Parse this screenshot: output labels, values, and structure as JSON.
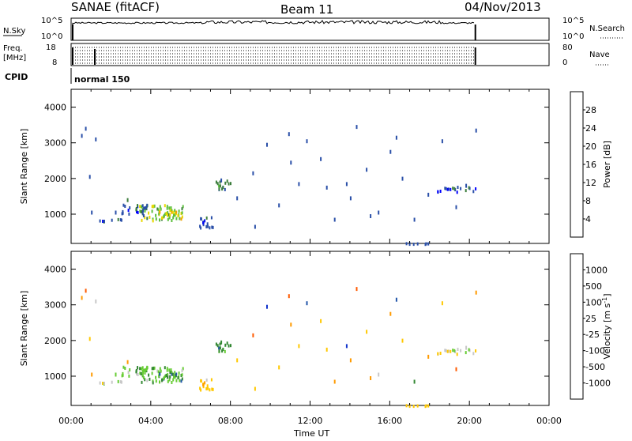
{
  "header": {
    "station": "SANAE (fitACF)",
    "beam": "Beam 11",
    "date": "04/Nov/2013"
  },
  "aux_panels": {
    "nsky_label": "N.Sky",
    "nsky_ticks": [
      "10^5",
      "10^0"
    ],
    "nsearch_label": "N.Search",
    "freq_label_line1": "Freq.",
    "freq_label_line2": "[MHz]",
    "freq_ticks": [
      "18",
      "8"
    ],
    "nave_ticks": [
      "80",
      "0"
    ],
    "nave_label": "Nave",
    "cpid_label": "CPID",
    "cpid_value": "normal 150"
  },
  "colors": {
    "power_scale": [
      "#0000ff",
      "#2a4fa8",
      "#3c7d3c",
      "#5bbf3c",
      "#e8d800",
      "#f0a000",
      "#f06000",
      "#ff0000"
    ],
    "velocity_scale": [
      "#ff0000",
      "#ff5a00",
      "#ff9a00",
      "#ffc800",
      "#c8c8c8",
      "#66cc33",
      "#338833",
      "#2255aa",
      "#1133cc"
    ]
  },
  "chart_data": [
    {
      "type": "heatmap",
      "name_id": "power",
      "xlabel": "",
      "ylabel": "Slant Range [km]",
      "xlim": [
        0,
        24
      ],
      "ylim": [
        180,
        4500
      ],
      "yticks": [
        1000,
        2000,
        3000,
        4000
      ],
      "colorbar_label": "Power [dB]",
      "colorbar_ticks": [
        "4",
        "8",
        "12",
        "16",
        "20",
        "24",
        "28"
      ],
      "clusters": [
        {
          "x": [
            3.4,
            5.6
          ],
          "y": [
            850,
            1300
          ],
          "level": 3
        },
        {
          "x": [
            4.4,
            5.5
          ],
          "y": [
            900,
            1100
          ],
          "level": 4
        },
        {
          "x": [
            2.5,
            3.8
          ],
          "y": [
            1000,
            1300
          ],
          "level": 1
        },
        {
          "x": [
            1.3,
            2.8
          ],
          "y": [
            820,
            900
          ],
          "level": 1
        },
        {
          "x": [
            6.3,
            7.2
          ],
          "y": [
            650,
            950
          ],
          "level": 1
        },
        {
          "x": [
            7.2,
            8.0
          ],
          "y": [
            1700,
            2000
          ],
          "level": 2
        },
        {
          "x": [
            18.3,
            20.3
          ],
          "y": [
            1650,
            1800
          ],
          "level": 1
        },
        {
          "x": [
            16.8,
            18.0
          ],
          "y": [
            190,
            220
          ],
          "level": 1
        }
      ],
      "scatter_points": [
        [
          0.5,
          3250,
          1
        ],
        [
          0.7,
          3450,
          1
        ],
        [
          1.2,
          3150,
          1
        ],
        [
          0.9,
          2100,
          1
        ],
        [
          1.0,
          1100,
          1
        ],
        [
          2.2,
          1100,
          1
        ],
        [
          2.8,
          1450,
          2
        ],
        [
          7.5,
          2000,
          1
        ],
        [
          8.3,
          1500,
          1
        ],
        [
          9.1,
          2200,
          1
        ],
        [
          10.4,
          1300,
          1
        ],
        [
          11.0,
          2500,
          1
        ],
        [
          11.8,
          3100,
          1
        ],
        [
          12.5,
          2600,
          1
        ],
        [
          13.2,
          900,
          1
        ],
        [
          13.8,
          1900,
          1
        ],
        [
          14.3,
          3500,
          1
        ],
        [
          14.8,
          2300,
          1
        ],
        [
          15.4,
          1100,
          1
        ],
        [
          16.0,
          2800,
          1
        ],
        [
          16.6,
          2050,
          1
        ],
        [
          17.2,
          900,
          1
        ],
        [
          17.9,
          1600,
          1
        ],
        [
          18.6,
          3100,
          1
        ],
        [
          19.3,
          1250,
          1
        ],
        [
          20.3,
          3400,
          1
        ],
        [
          12.8,
          1800,
          1
        ],
        [
          10.9,
          3300,
          1
        ],
        [
          15.0,
          1000,
          1
        ],
        [
          9.8,
          3000,
          1
        ],
        [
          9.2,
          700,
          1
        ],
        [
          14.0,
          1500,
          1
        ],
        [
          16.3,
          3200,
          1
        ],
        [
          11.4,
          1900,
          1
        ],
        [
          19.8,
          1850,
          1
        ]
      ]
    },
    {
      "type": "heatmap",
      "name_id": "velocity",
      "xlabel": "Time UT",
      "ylabel": "Slant Range [km]",
      "xlim": [
        0,
        24
      ],
      "ylim": [
        180,
        4500
      ],
      "xticks": [
        "00:00",
        "04:00",
        "08:00",
        "12:00",
        "16:00",
        "20:00",
        "00:00"
      ],
      "yticks": [
        1000,
        2000,
        3000,
        4000
      ],
      "colorbar_label": "Velocity [m s^-1]",
      "colorbar_ticks": [
        "1000",
        "500",
        "100",
        "25",
        "-25",
        "-100",
        "-500",
        "-1000"
      ],
      "clusters": [
        {
          "x": [
            3.4,
            5.6
          ],
          "y": [
            850,
            1300
          ],
          "level": 5
        },
        {
          "x": [
            4.4,
            5.5
          ],
          "y": [
            900,
            1100
          ],
          "level": 6
        },
        {
          "x": [
            2.5,
            3.8
          ],
          "y": [
            1000,
            1300
          ],
          "level": 5
        },
        {
          "x": [
            1.3,
            2.8
          ],
          "y": [
            820,
            900
          ],
          "level": 4
        },
        {
          "x": [
            6.3,
            7.2
          ],
          "y": [
            650,
            950
          ],
          "level": 3
        },
        {
          "x": [
            7.2,
            8.0
          ],
          "y": [
            1700,
            2000
          ],
          "level": 6
        },
        {
          "x": [
            18.3,
            20.3
          ],
          "y": [
            1650,
            1800
          ],
          "level": 4
        },
        {
          "x": [
            16.8,
            18.0
          ],
          "y": [
            190,
            220
          ],
          "level": 3
        }
      ],
      "scatter_points": [
        [
          0.5,
          3250,
          2
        ],
        [
          0.7,
          3450,
          1
        ],
        [
          1.2,
          3150,
          4
        ],
        [
          0.9,
          2100,
          3
        ],
        [
          1.0,
          1100,
          2
        ],
        [
          2.2,
          1100,
          5
        ],
        [
          2.8,
          1450,
          2
        ],
        [
          7.5,
          2000,
          6
        ],
        [
          8.3,
          1500,
          3
        ],
        [
          9.1,
          2200,
          1
        ],
        [
          10.4,
          1300,
          3
        ],
        [
          11.0,
          2500,
          2
        ],
        [
          11.8,
          3100,
          7
        ],
        [
          12.5,
          2600,
          3
        ],
        [
          13.2,
          900,
          2
        ],
        [
          13.8,
          1900,
          8
        ],
        [
          14.3,
          3500,
          1
        ],
        [
          14.8,
          2300,
          3
        ],
        [
          15.4,
          1100,
          4
        ],
        [
          16.0,
          2800,
          2
        ],
        [
          16.6,
          2050,
          3
        ],
        [
          17.2,
          900,
          6
        ],
        [
          17.9,
          1600,
          2
        ],
        [
          18.6,
          3100,
          3
        ],
        [
          19.3,
          1250,
          1
        ],
        [
          20.3,
          3400,
          2
        ],
        [
          12.8,
          1800,
          3
        ],
        [
          10.9,
          3300,
          1
        ],
        [
          15.0,
          1000,
          2
        ],
        [
          9.8,
          3000,
          8
        ],
        [
          9.2,
          700,
          3
        ],
        [
          14.0,
          1500,
          2
        ],
        [
          16.3,
          3200,
          7
        ],
        [
          11.4,
          1900,
          3
        ],
        [
          19.8,
          1850,
          4
        ]
      ]
    }
  ]
}
